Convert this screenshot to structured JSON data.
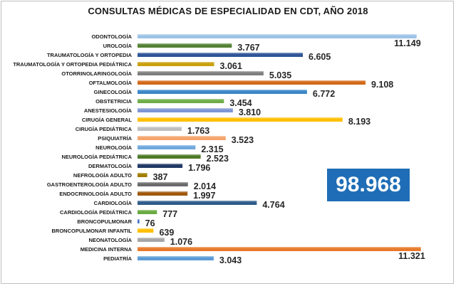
{
  "title": "CONSULTAS  MÉDICAS DE ESPECIALIDAD EN CDT, AÑO 2018",
  "total_label": "98.968",
  "chart_data": {
    "type": "bar",
    "orientation": "horizontal",
    "title": "CONSULTAS  MÉDICAS DE ESPECIALIDAD EN CDT, AÑO 2018",
    "xlim": [
      0,
      11500
    ],
    "grid": false,
    "categories": [
      "ODONTOLOGÍA",
      "UROLOGÍA",
      "TRAUMATOLOGÍA Y ORTOPEDIA",
      "TRAUMATOLOGÍA Y ORTOPEDIA PEDIÁTRICA",
      "OTORRINOLARINGOLOGÍA",
      "OFTALMOLOGÍA",
      "GINECOLOGÍA",
      "OBSTETRICIA",
      "ANESTESIOLOGÍA",
      "CIRUGÍA GENERAL",
      "CIRUGÍA PEDIÁTRICA",
      "PSIQUIATRÍA",
      "NEUROLOGÍA",
      "NEUROLOGÍA PEDIÁTRICA",
      "DERMATOLOGÍA",
      "NEFROLOGÍA ADULTO",
      "GASTROENTEROLOGÍA ADULTO",
      "ENDOCRINOLOGÍA ADULTO",
      "CARDIOLOGÍA",
      "CARDIOLOGÍA PEDIÁTRICA",
      "BRONCOPULMONAR",
      "BRONCOPULMONAR INFANTIL",
      "NEONATOLOGÍA",
      "MEDICINA INTERNA",
      "PEDIATRÍA"
    ],
    "values": [
      11149,
      3767,
      6605,
      3061,
      5035,
      9108,
      6772,
      3454,
      3810,
      8193,
      1763,
      3523,
      2315,
      2523,
      1796,
      387,
      2014,
      1997,
      4764,
      777,
      76,
      639,
      1076,
      11321,
      3043
    ],
    "value_labels": [
      "11.149",
      "3.767",
      "6.605",
      "3.061",
      "5.035",
      "9.108",
      "6.772",
      "3.454",
      "3.810",
      "8.193",
      "1.763",
      "3.523",
      "2.315",
      "2.523",
      "1.796",
      "387",
      "2.014",
      "1.997",
      "4.764",
      "777",
      "76",
      "639",
      "1.076",
      "11.321",
      "3.043"
    ],
    "colors": [
      "#9dc3e6",
      "#548235",
      "#2f5597",
      "#c9a10d",
      "#7f7f7f",
      "#d36a1a",
      "#3b86c8",
      "#70ad47",
      "#7f96d4",
      "#ffc000",
      "#bfbfbf",
      "#f4a46b",
      "#6fa8dc",
      "#4e7a27",
      "#203864",
      "#a07d00",
      "#6b6b6b",
      "#a0580e",
      "#2e5c8a",
      "#6aaa41",
      "#4472c4",
      "#ffc000",
      "#a6a6a6",
      "#e87a2c",
      "#5b9bd5"
    ]
  }
}
